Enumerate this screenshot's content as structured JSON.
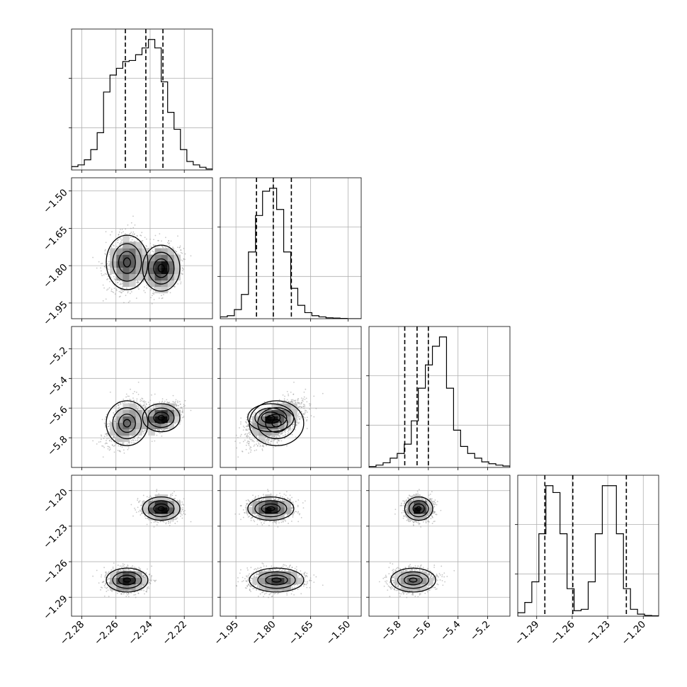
{
  "chart_data": {
    "type": "corner",
    "grid": true,
    "quantile_line_style": "dashed",
    "parameters": [
      {
        "index": 0,
        "range": [
          -2.286,
          -2.2035
        ],
        "ticks": [
          "-2.28",
          "-2.26",
          "-2.24",
          "-2.22"
        ],
        "tick_values": [
          -2.28,
          -2.26,
          -2.24,
          -2.22
        ]
      },
      {
        "index": 1,
        "range": [
          -2.013,
          -1.447
        ],
        "ticks": [
          "-1.95",
          "-1.80",
          "-1.65",
          "-1.50"
        ],
        "tick_values": [
          -1.95,
          -1.8,
          -1.65,
          -1.5
        ]
      },
      {
        "index": 2,
        "range": [
          -6.0,
          -5.05
        ],
        "ticks": [
          "-5.8",
          "-5.6",
          "-5.4",
          "-5.2"
        ],
        "tick_values": [
          -5.8,
          -5.6,
          -5.4,
          -5.2
        ]
      },
      {
        "index": 3,
        "range": [
          -1.306,
          -1.187
        ],
        "ticks": [
          "-1.29",
          "-1.26",
          "-1.23",
          "-1.20"
        ],
        "tick_values": [
          -1.29,
          -1.26,
          -1.23,
          -1.2
        ]
      }
    ],
    "histograms": [
      {
        "param": 0,
        "bin_edges_range": [
          -2.286,
          -2.2035
        ],
        "counts": [
          1,
          1.5,
          3,
          6,
          11,
          23,
          28,
          30,
          32,
          32.3,
          34,
          36,
          38.5,
          36,
          26,
          17,
          12,
          6,
          2.5,
          1.5,
          0.8,
          0.3
        ],
        "quantiles": [
          -2.2545,
          -2.2425,
          -2.2325
        ]
      },
      {
        "param": 1,
        "bin_edges_range": [
          -2.013,
          -1.447
        ],
        "counts": [
          0.3,
          0.5,
          1.5,
          4,
          11,
          17,
          21,
          21.5,
          18,
          11,
          5,
          2.2,
          1,
          0.5,
          0.3,
          0.15,
          0.1,
          0.05,
          0,
          0
        ],
        "quantiles": [
          -1.8675,
          -1.8,
          -1.7275
        ]
      },
      {
        "param": 2,
        "bin_edges_range": [
          -6.0,
          -5.05
        ],
        "counts": [
          0.2,
          0.5,
          1,
          2,
          3,
          5,
          10,
          17,
          22,
          26,
          28,
          17,
          8,
          4.5,
          3,
          2,
          1.2,
          0.8,
          0.5,
          0.3
        ],
        "quantiles": [
          -5.759,
          -5.676,
          -5.6
        ]
      },
      {
        "param": 3,
        "bin_edges_range": [
          -1.306,
          -1.187
        ],
        "counts": [
          0.5,
          2,
          5,
          12,
          19,
          18,
          12,
          4,
          0.8,
          1,
          5,
          12,
          19,
          19,
          12,
          4,
          1,
          0.3,
          0.1,
          0.05
        ],
        "quantiles": [
          -1.2831,
          -1.2595,
          -1.2143
        ]
      }
    ],
    "sample_modes": [
      {
        "weight": 0.5,
        "mean": [
          -2.2535,
          -1.787,
          -5.702,
          -1.2755
        ],
        "sd": [
          0.0058,
          0.052,
          0.072,
          0.0048
        ]
      },
      {
        "weight": 0.5,
        "mean": [
          -2.2335,
          -1.81,
          -5.665,
          -1.2152
        ],
        "sd": [
          0.0052,
          0.044,
          0.045,
          0.0047
        ]
      }
    ]
  }
}
